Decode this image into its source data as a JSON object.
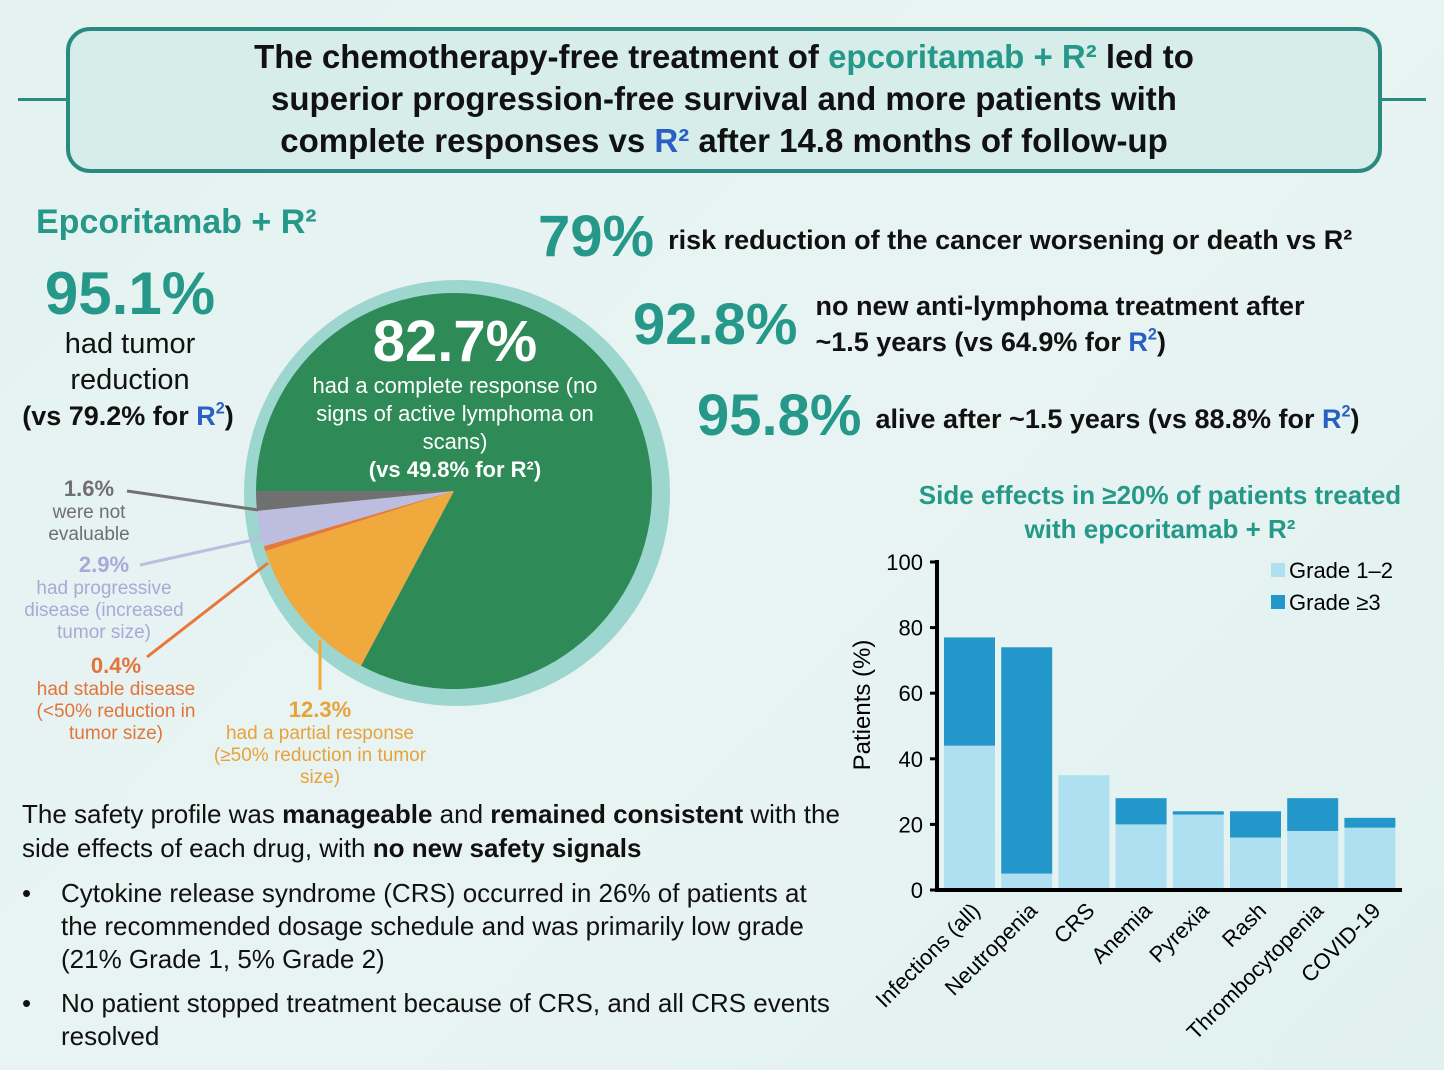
{
  "header": {
    "title_parts": [
      "The chemotherapy-free treatment of ",
      "epcoritamab + R²",
      " led to",
      "superior progression-free survival and more patients with",
      "complete responses vs ",
      "R²",
      " after 14.8 months of follow-up"
    ]
  },
  "left": {
    "group_title": "Epcoritamab + R²",
    "tumor_reduction_value": "95.1%",
    "tumor_reduction_text": "had tumor reduction",
    "tumor_reduction_compare": "(vs 79.2% for ",
    "r2": "R",
    "close": ")"
  },
  "stats": [
    {
      "value": "79%",
      "text": "risk reduction of the cancer worsening or death vs R²"
    },
    {
      "value": "92.8%",
      "text_line1": "no new anti-lymphoma treatment after",
      "text_line2a": "~1.5 years (vs 64.9% for ",
      "r2": "R",
      "close": ")"
    },
    {
      "value": "95.8%",
      "text_a": "alive after ~1.5 years (vs 88.8% for ",
      "r2": "R",
      "close": ")"
    }
  ],
  "safety": {
    "intro_a": "The safety profile was ",
    "intro_b": "manageable",
    "intro_c": " and ",
    "intro_d": "remained consistent",
    "intro_e": " with the side effects of each drug, with ",
    "intro_f": "no new safety signals",
    "bullets": [
      "Cytokine release syndrome (CRS) occurred in 26% of patients at the recommended dosage schedule and was primarily low grade (21% Grade 1, 5% Grade 2)",
      "No patient stopped treatment because of CRS, and all CRS events resolved"
    ],
    "bullet_symbol": "•"
  },
  "colors": {
    "teal": "#26988a",
    "r2_blue": "#2a5fc4",
    "ring": "#9dd6cf",
    "complete": "#2e8b57",
    "partial": "#f0a93c",
    "stable": "#e8773a",
    "progressive": "#bdbddf",
    "not_evaluable": "#707070",
    "grade12": "#aee0f2",
    "grade3": "#2397c9"
  },
  "chart_data": [
    {
      "type": "pie",
      "slices": [
        {
          "value": 82.7,
          "label": "82.7%",
          "text": "had a complete response (no signs of active lymphoma on scans)",
          "compare": "(vs 49.8% for R²)",
          "color": "#2e8b57"
        },
        {
          "value": 12.3,
          "label": "12.3%",
          "text": "had a partial response (≥50% reduction in tumor size)",
          "color": "#f0a93c"
        },
        {
          "value": 0.4,
          "label": "0.4%",
          "text": "had stable disease (<50% reduction in tumor size)",
          "color": "#e8773a"
        },
        {
          "value": 2.9,
          "label": "2.9%",
          "text": "had progressive disease (increased tumor size)",
          "color": "#bdbddf"
        },
        {
          "value": 1.6,
          "label": "1.6%",
          "text": "were not evaluable",
          "color": "#707070"
        }
      ]
    },
    {
      "type": "bar",
      "stacked": true,
      "title": "Side effects in ≥20% of patients treated with epcoritamab + R²",
      "ylabel": "Patients (%)",
      "ylim": [
        0,
        100
      ],
      "yticks": [
        0,
        20,
        40,
        60,
        80,
        100
      ],
      "categories": [
        "Infections (all)",
        "Neutropenia",
        "CRS",
        "Anemia",
        "Pyrexia",
        "Rash",
        "Thrombocytopenia",
        "COVID-19"
      ],
      "series": [
        {
          "name": "Grade 1–2",
          "color": "#aee0f2",
          "values": [
            44,
            5,
            35,
            20,
            23,
            16,
            18,
            19
          ]
        },
        {
          "name": "Grade ≥3",
          "color": "#2397c9",
          "values": [
            33,
            69,
            0,
            8,
            1,
            8,
            10,
            3
          ]
        }
      ],
      "legend": "top-right",
      "grid": false
    }
  ]
}
